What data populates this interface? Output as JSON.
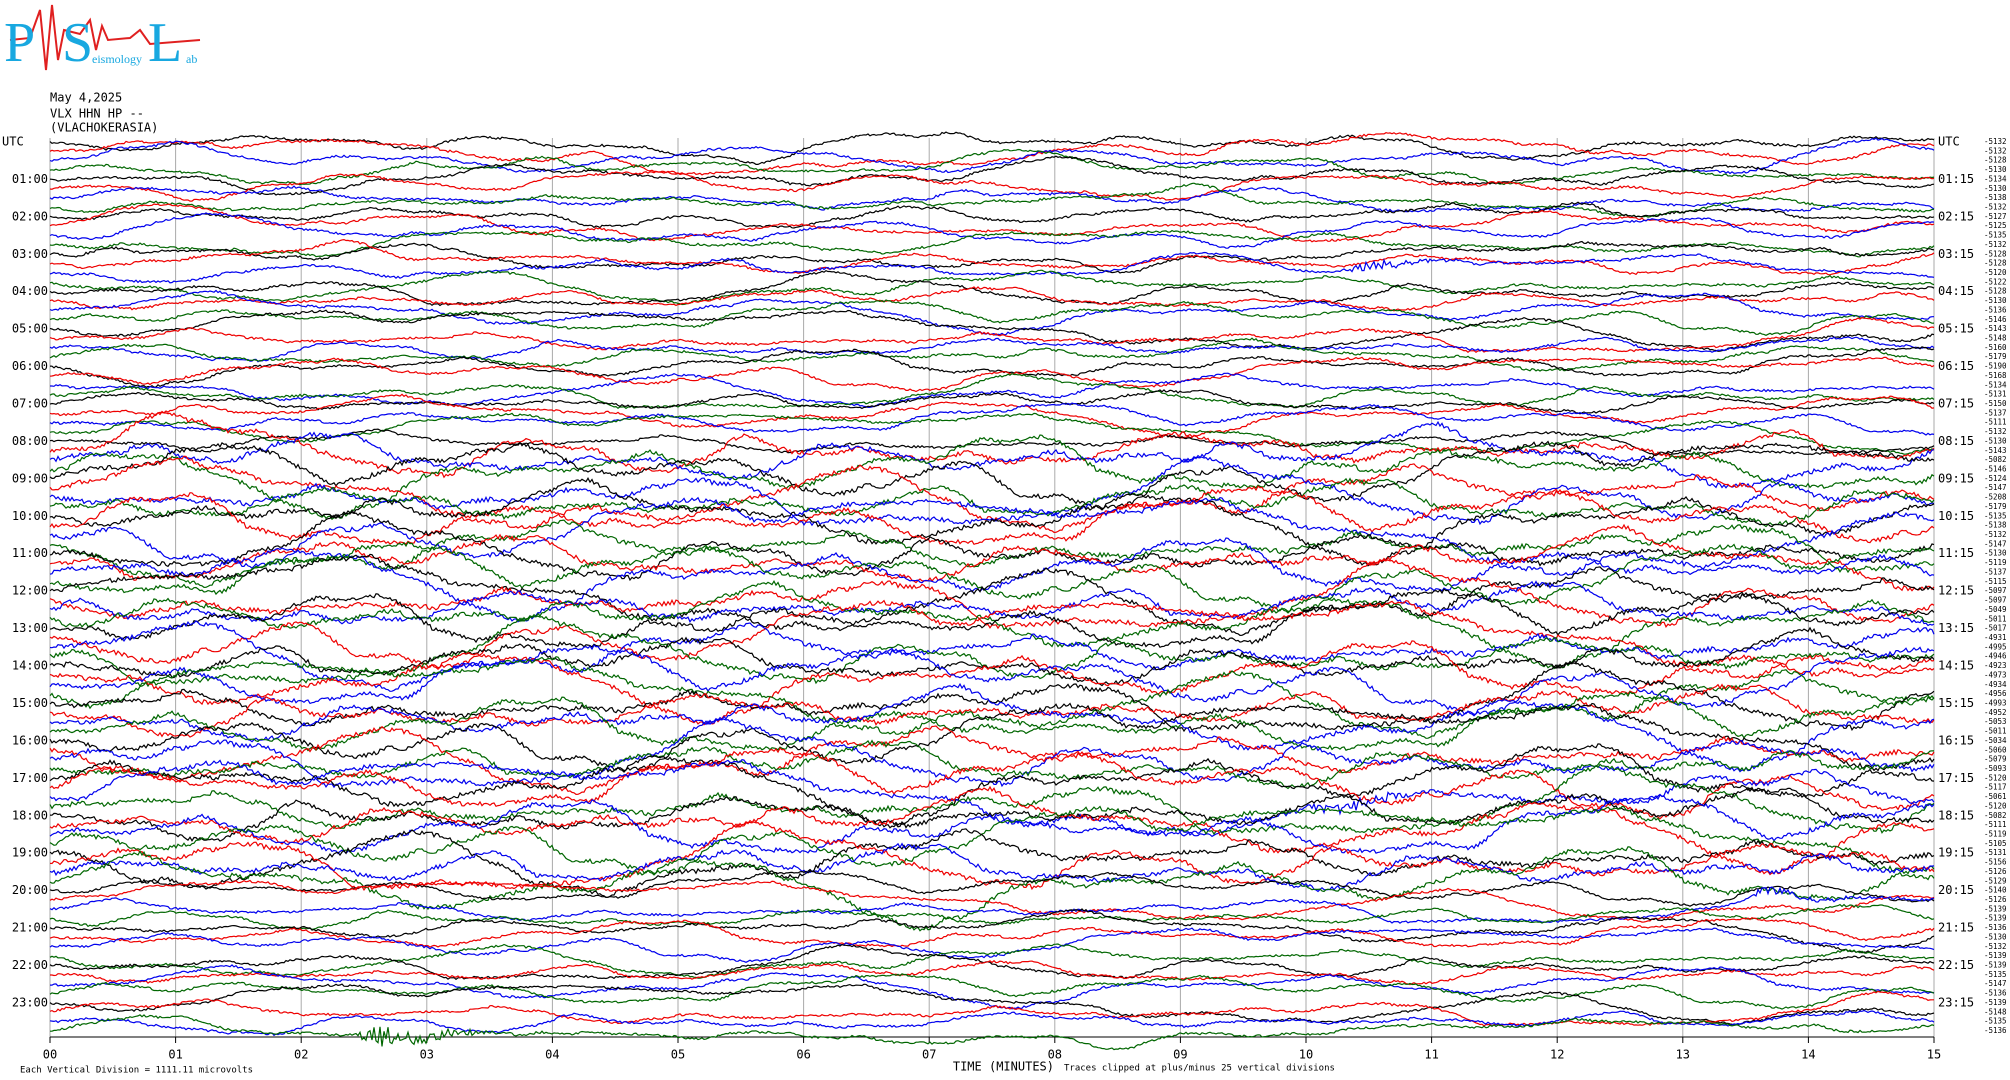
{
  "logo": {
    "letters": [
      "P",
      "S",
      "L"
    ],
    "fragments": [
      "eismology",
      "ab"
    ]
  },
  "header": {
    "date": "May 4,2025",
    "station": "VLX HHN HP --",
    "site": "(VLACHOKERASIA)"
  },
  "left_labels": [
    "UTC",
    "01:00",
    "02:00",
    "03:00",
    "04:00",
    "05:00",
    "06:00",
    "07:00",
    "08:00",
    "09:00",
    "10:00",
    "11:00",
    "12:00",
    "13:00",
    "14:00",
    "15:00",
    "16:00",
    "17:00",
    "18:00",
    "19:00",
    "20:00",
    "21:00",
    "22:00",
    "23:00"
  ],
  "right_labels": [
    "UTC",
    "01:15",
    "02:15",
    "03:15",
    "04:15",
    "05:15",
    "06:15",
    "07:15",
    "08:15",
    "09:15",
    "10:15",
    "11:15",
    "12:15",
    "13:15",
    "14:15",
    "15:15",
    "16:15",
    "17:15",
    "18:15",
    "19:15",
    "20:15",
    "21:15",
    "22:15",
    "23:15"
  ],
  "trace_offsets": [
    "-5132",
    "-5132",
    "-5128",
    "-5130",
    "-5134",
    "-5130",
    "-5138",
    "-5132",
    "-5127",
    "-5125",
    "-5135",
    "-5132",
    "-5128",
    "-5128",
    "-5120",
    "-5122",
    "-5128",
    "-5130",
    "-5136",
    "-5146",
    "-5143",
    "-5148",
    "-5160",
    "-5179",
    "-5190",
    "-5168",
    "-5134",
    "-5131",
    "-5150",
    "-5137",
    "-5111",
    "-5132",
    "-5130",
    "-5143",
    "-5082",
    "-5146",
    "-5124",
    "-5147",
    "-5208",
    "-5179",
    "-5135",
    "-5138",
    "-5132",
    "-5147",
    "-5130",
    "-5119",
    "-5137",
    "-5115",
    "-5097",
    "-5097",
    "-5049",
    "-5011",
    "-5017",
    "-4931",
    "-4995",
    "-4946",
    "-4923",
    "-4973",
    "-4934",
    "-4956",
    "-4993",
    "-4952",
    "-5053",
    "-5011",
    "-5034",
    "-5060",
    "-5079",
    "-5093",
    "-5120",
    "-5117",
    "-5061",
    "-5120",
    "-5082",
    "-5111",
    "-5119",
    "-5105",
    "-5131",
    "-5156",
    "-5126",
    "-5129",
    "-5140",
    "-5126",
    "-5139",
    "-5139",
    "-5136",
    "-5130",
    "-5132",
    "-5139",
    "-5139",
    "-5135",
    "-5147",
    "-5136",
    "-5139",
    "-5148",
    "-5135",
    "-5136"
  ],
  "x_ticks": [
    "00",
    "01",
    "02",
    "03",
    "04",
    "05",
    "06",
    "07",
    "08",
    "09",
    "10",
    "11",
    "12",
    "13",
    "14",
    "15"
  ],
  "footer": {
    "scale": "Each Vertical Division = 1111.11 microvolts",
    "axis_title": "TIME (MINUTES)",
    "clip_note": "Traces clipped at plus/minus 25 vertical divisions"
  }
}
